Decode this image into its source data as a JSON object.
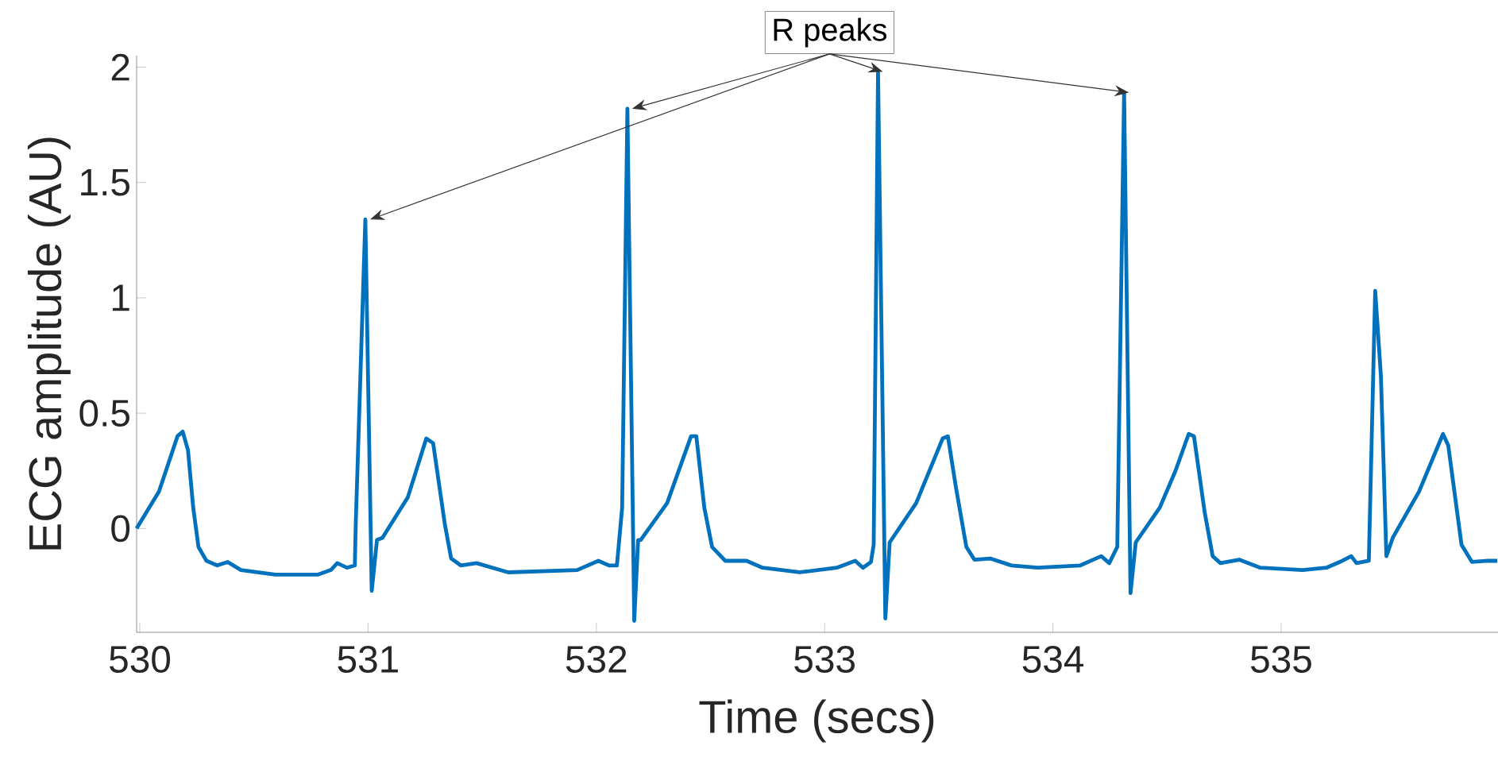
{
  "chart_data": {
    "type": "line",
    "xlabel": "Time (secs)",
    "ylabel": "ECG amplitude (AU)",
    "annotations": [
      {
        "text": "R peaks",
        "x": 533.234,
        "y": 1.98
      }
    ],
    "xlim": [
      529.986,
      535.95
    ],
    "ylim": [
      -0.45,
      2.05
    ],
    "xticks": [
      530,
      531,
      532,
      533,
      534,
      535
    ],
    "yticks": [
      0,
      0.5,
      1,
      1.5,
      2
    ],
    "marker": "none",
    "line_style": "solid",
    "series": [
      {
        "color": "#0072bd",
        "x": [
          529.986,
          530.084,
          530.165,
          530.188,
          530.211,
          530.234,
          530.257,
          530.292,
          530.339,
          530.385,
          530.443,
          530.594,
          530.779,
          530.837,
          530.865,
          530.907,
          530.942,
          530.946,
          530.988,
          531.016,
          531.039,
          531.063,
          531.174,
          531.255,
          531.285,
          531.336,
          531.364,
          531.406,
          531.475,
          531.614,
          531.916,
          532.009,
          532.055,
          532.09,
          532.113,
          532.136,
          532.166,
          532.183,
          532.194,
          532.31,
          532.415,
          532.438,
          532.473,
          532.507,
          532.565,
          532.658,
          532.728,
          532.89,
          533.053,
          533.134,
          533.168,
          533.203,
          533.215,
          533.234,
          533.266,
          533.285,
          533.401,
          533.517,
          533.54,
          533.575,
          533.621,
          533.656,
          533.725,
          533.818,
          533.934,
          534.12,
          534.212,
          534.247,
          534.282,
          534.312,
          534.34,
          534.363,
          534.468,
          534.537,
          534.595,
          534.618,
          534.665,
          534.7,
          534.734,
          534.816,
          534.909,
          535.094,
          535.198,
          535.268,
          535.307,
          535.33,
          535.384,
          535.412,
          535.437,
          535.461,
          535.489,
          535.604,
          535.709,
          535.732,
          535.79,
          535.836,
          535.906,
          535.947
        ],
        "values": [
          0,
          0.16,
          0.4,
          0.42,
          0.34,
          0.09,
          -0.08,
          -0.14,
          -0.16,
          -0.145,
          -0.18,
          -0.2,
          -0.2,
          -0.18,
          -0.15,
          -0.17,
          -0.16,
          0.02,
          1.34,
          -0.27,
          -0.05,
          -0.04,
          0.135,
          0.39,
          0.37,
          0.02,
          -0.13,
          -0.16,
          -0.15,
          -0.19,
          -0.18,
          -0.14,
          -0.16,
          -0.16,
          0.09,
          1.82,
          -0.4,
          -0.05,
          -0.05,
          0.11,
          0.4,
          0.4,
          0.09,
          -0.08,
          -0.14,
          -0.14,
          -0.17,
          -0.19,
          -0.17,
          -0.14,
          -0.17,
          -0.145,
          -0.07,
          1.98,
          -0.39,
          -0.06,
          0.11,
          0.39,
          0.4,
          0.18,
          -0.08,
          -0.135,
          -0.13,
          -0.16,
          -0.17,
          -0.16,
          -0.12,
          -0.15,
          -0.08,
          1.89,
          -0.28,
          -0.06,
          0.09,
          0.25,
          0.41,
          0.4,
          0.07,
          -0.12,
          -0.15,
          -0.135,
          -0.17,
          -0.18,
          -0.17,
          -0.14,
          -0.12,
          -0.15,
          -0.14,
          1.03,
          0.66,
          -0.12,
          -0.04,
          0.16,
          0.41,
          0.36,
          -0.07,
          -0.145,
          -0.14,
          -0.14
        ]
      }
    ]
  }
}
